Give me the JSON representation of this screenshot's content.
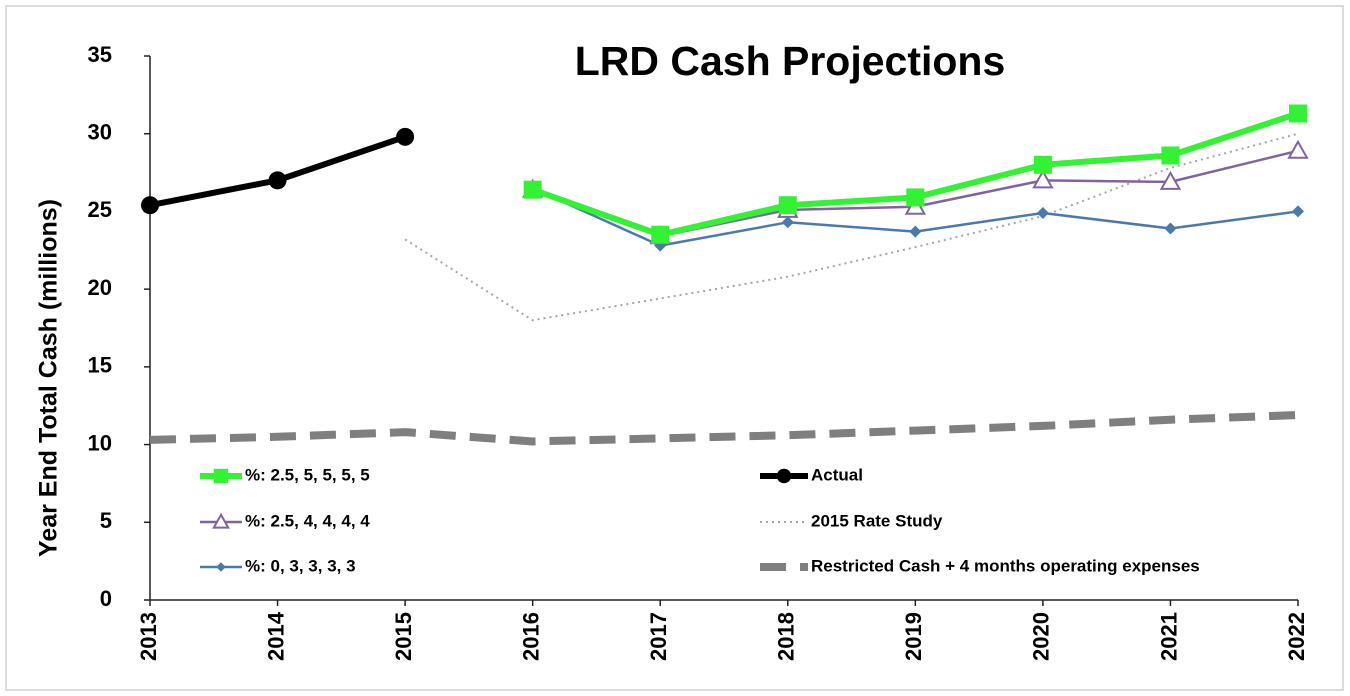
{
  "chart_data": {
    "type": "line",
    "title": "LRD Cash Projections",
    "y_label": "Year End Total Cash (millions)",
    "categories": [
      "2013",
      "2014",
      "2015",
      "2016",
      "2017",
      "2018",
      "2019",
      "2020",
      "2021",
      "2022"
    ],
    "ylim": [
      0,
      35
    ],
    "yticks": [
      0,
      5,
      10,
      15,
      20,
      25,
      30,
      35
    ],
    "grid": false,
    "legend": "bottom",
    "series": [
      {
        "name": "%: 2.5, 5, 5, 5, 5",
        "color": "#33f233",
        "marker": "square",
        "line": "solid",
        "values": [
          null,
          null,
          null,
          26.4,
          23.5,
          25.4,
          25.9,
          28.0,
          28.6,
          31.3
        ]
      },
      {
        "name": "Actual",
        "color": "#000000",
        "marker": "circle",
        "line": "solid",
        "values": [
          25.4,
          27.0,
          29.8,
          null,
          null,
          null,
          null,
          null,
          null,
          null
        ]
      },
      {
        "name": "%: 2.5, 4, 4, 4, 4",
        "color": "#8064a2",
        "marker": "triangle",
        "line": "solid",
        "values": [
          null,
          null,
          null,
          26.4,
          23.4,
          25.1,
          25.3,
          27.0,
          26.9,
          28.9
        ]
      },
      {
        "name": "2015 Rate Study",
        "color": "#a6a6a6",
        "marker": "none",
        "line": "dotted",
        "values": [
          null,
          null,
          23.2,
          18.0,
          19.4,
          20.8,
          22.7,
          24.7,
          27.8,
          30.0
        ]
      },
      {
        "name": "%: 0, 3, 3, 3, 3",
        "color": "#4a7aab",
        "marker": "diamond",
        "line": "solid",
        "values": [
          null,
          null,
          null,
          26.5,
          22.8,
          24.3,
          23.7,
          24.9,
          23.9,
          25.0
        ]
      },
      {
        "name": "Restricted Cash + 4 months operating expenses",
        "color": "#7f7f7f",
        "marker": "none",
        "line": "dashed",
        "values": [
          10.3,
          10.5,
          10.8,
          10.2,
          10.4,
          10.6,
          10.9,
          11.2,
          11.6,
          11.9
        ]
      }
    ]
  }
}
